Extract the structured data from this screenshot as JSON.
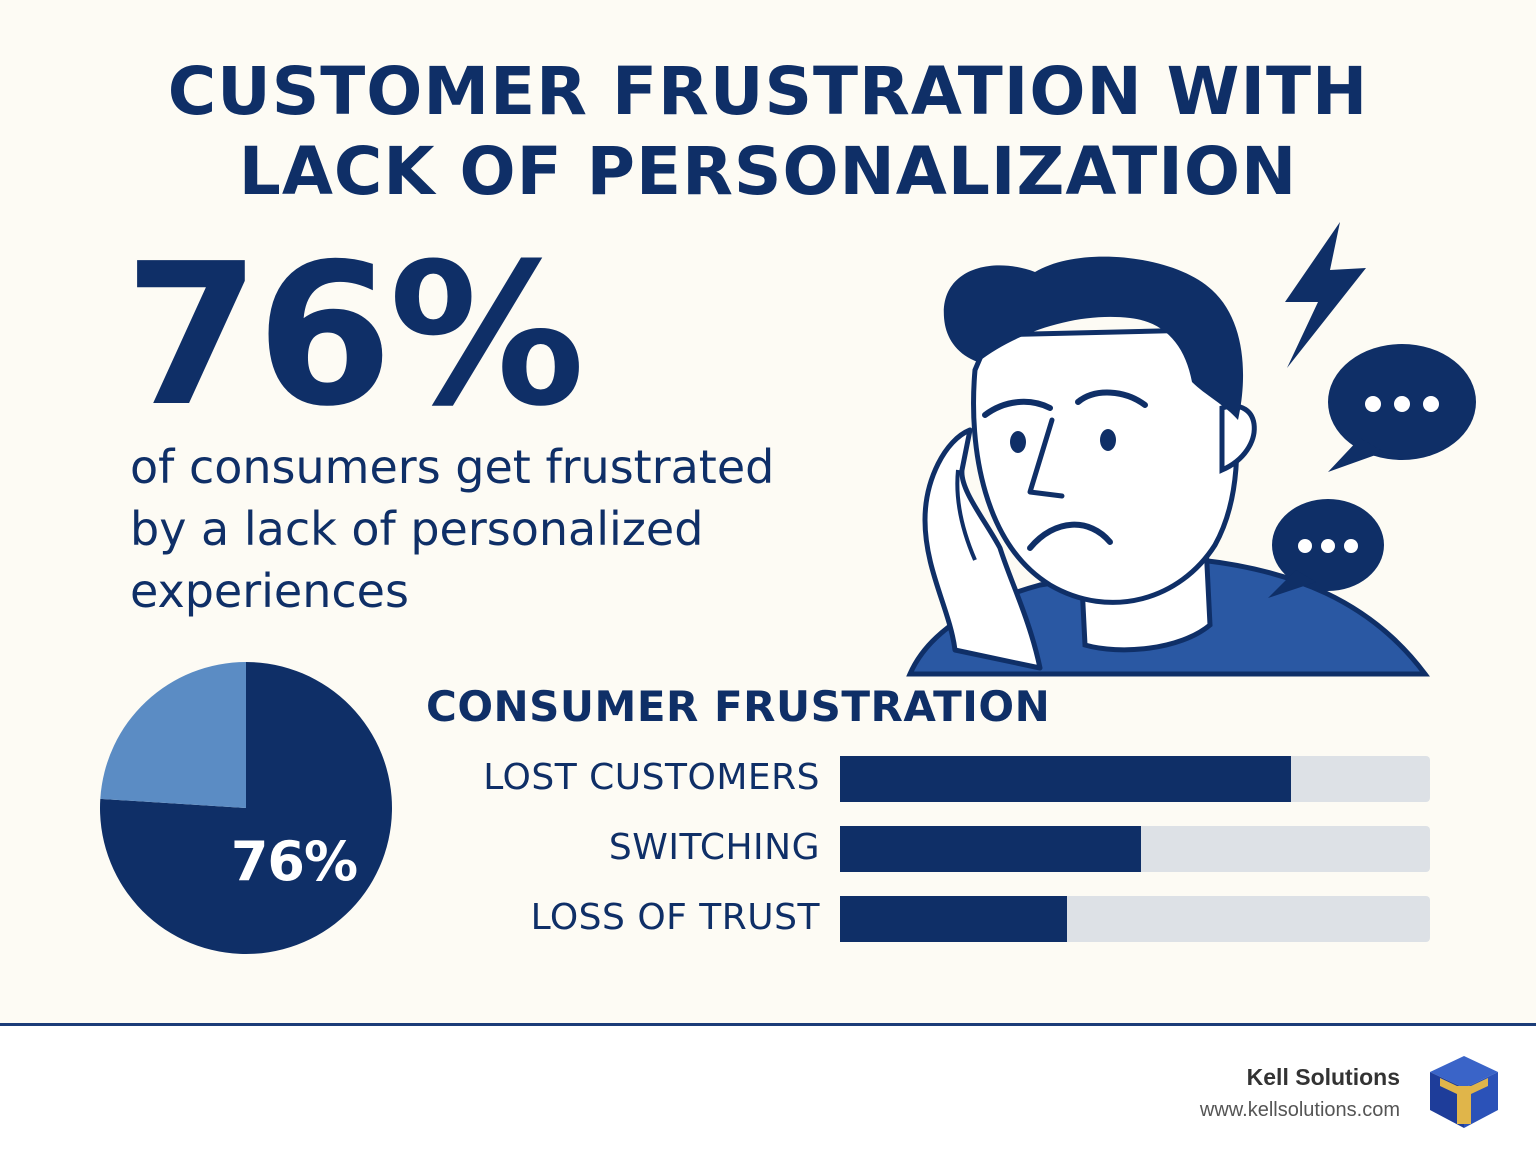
{
  "title": {
    "line1": "CUSTOMER FRUSTRATION WITH",
    "line2": "LACK OF PERSONALIZATION"
  },
  "headline_stat": "76%",
  "description": {
    "line1": "of consumers get frustrated",
    "line2": "by a lack of personalized",
    "line3": "experiences"
  },
  "illustration": {
    "subject": "frustrated-person-icon",
    "accents": [
      "lightning-bolt-icon",
      "speech-bubble-icon",
      "speech-bubble-icon"
    ]
  },
  "colors": {
    "navy": "#0f2f67",
    "mid_blue": "#5b8cc4",
    "shirt_blue": "#2a58a3",
    "track_gray": "#dde1e6",
    "background": "#fdfbf4"
  },
  "chart_data": [
    {
      "type": "pie",
      "slices": [
        {
          "label": "76%",
          "value": 76,
          "color": "#0f2f67"
        },
        {
          "label": "",
          "value": 24,
          "color": "#5b8cc4"
        }
      ]
    },
    {
      "type": "bar",
      "orientation": "horizontal",
      "title": "CONSUMER FRUSTRATION",
      "categories": [
        "LOST CUSTOMERS",
        "SWITCHING",
        "LOSS OF TRUST"
      ],
      "values": [
        0.765,
        0.51,
        0.385
      ],
      "value_scale": "fraction of track",
      "ylim": [
        0,
        1
      ]
    }
  ],
  "footer": {
    "brand": "Kell Solutions",
    "url": "www.kellsolutions.com",
    "logo": "kell-cube-logo-icon"
  }
}
